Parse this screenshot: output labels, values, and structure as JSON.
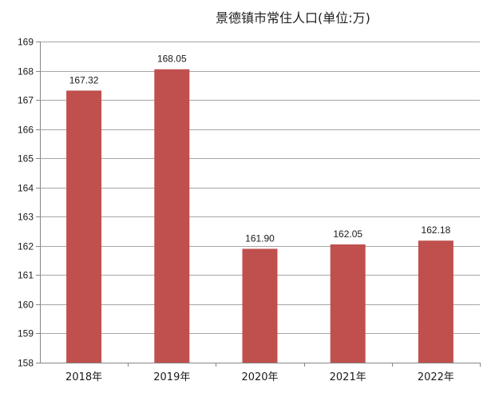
{
  "chart_data": {
    "type": "bar",
    "title": "景德镇市常住人口(单位:万)",
    "categories": [
      "2018年",
      "2019年",
      "2020年",
      "2021年",
      "2022年"
    ],
    "values": [
      167.32,
      168.05,
      161.9,
      162.05,
      162.18
    ],
    "data_labels": [
      "167.32",
      "168.05",
      "161.90",
      "162.05",
      "162.18"
    ],
    "ylim": [
      158,
      169
    ],
    "yticks": [
      158,
      159,
      160,
      161,
      162,
      163,
      164,
      165,
      166,
      167,
      168,
      169
    ],
    "grid": true,
    "legend": "none",
    "bar_color": "#c0504d",
    "grid_color": "#a6a6a6"
  }
}
